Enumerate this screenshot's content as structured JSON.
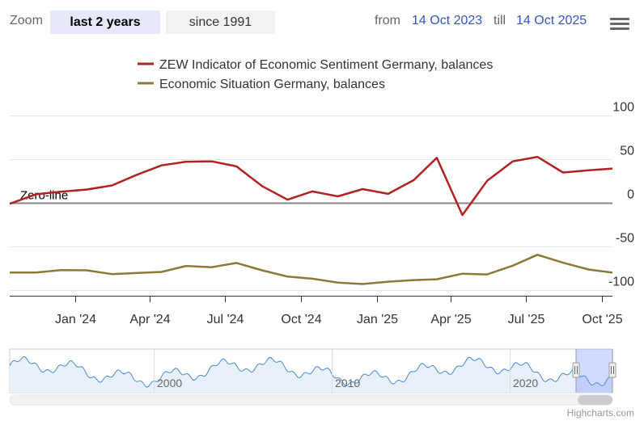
{
  "toolbar": {
    "zoom_label": "Zoom",
    "zoom_buttons": [
      "last 2 years",
      "since 1991"
    ],
    "active_zoom": "last 2 years",
    "from_label": "from",
    "from_value": "14 Oct 2023",
    "till_label": "till",
    "till_value": "14 Oct 2025",
    "menu_icon": "hamburger-menu-icon"
  },
  "credit": "Highcharts.com",
  "chart_data": {
    "type": "line",
    "ylim": [
      -100,
      100
    ],
    "yticks": [
      100,
      50,
      0,
      -50,
      -100
    ],
    "x_tick_labels": [
      "Jan '24",
      "Apr '24",
      "Jul '24",
      "Oct '24",
      "Jan '25",
      "Apr '25",
      "Jul '25",
      "Oct '25"
    ],
    "plot_lines": [
      {
        "value": 0,
        "label": "Zero-line"
      }
    ],
    "series": [
      {
        "name": "ZEW Indicator of Economic Sentiment Germany, balances",
        "color": "#b22222",
        "x": [
          "2023-10-14",
          "2023-11-15",
          "2023-12-15",
          "2024-01-15",
          "2024-02-15",
          "2024-03-15",
          "2024-04-15",
          "2024-05-15",
          "2024-06-15",
          "2024-07-15",
          "2024-08-15",
          "2024-09-15",
          "2024-10-15",
          "2024-11-15",
          "2024-12-15",
          "2025-01-15",
          "2025-02-15",
          "2025-03-15",
          "2025-04-15",
          "2025-05-15",
          "2025-06-15",
          "2025-07-15",
          "2025-08-15",
          "2025-09-15",
          "2025-10-14"
        ],
        "values": [
          -1.1,
          9.8,
          12.8,
          15.2,
          19.9,
          31.7,
          42.9,
          47.1,
          47.5,
          41.8,
          19.2,
          3.6,
          13.1,
          7.4,
          15.7,
          10.3,
          26.0,
          51.6,
          -14.0,
          25.2,
          47.5,
          52.7,
          34.7,
          37.3,
          39.3
        ]
      },
      {
        "name": "Economic Situation Germany, balances",
        "color": "#8b7a35",
        "x": [
          "2023-10-14",
          "2023-11-15",
          "2023-12-15",
          "2024-01-15",
          "2024-02-15",
          "2024-03-15",
          "2024-04-15",
          "2024-05-15",
          "2024-06-15",
          "2024-07-15",
          "2024-08-15",
          "2024-09-15",
          "2024-10-15",
          "2024-11-15",
          "2024-12-15",
          "2025-01-15",
          "2025-02-15",
          "2025-03-15",
          "2025-04-15",
          "2025-05-15",
          "2025-06-15",
          "2025-07-15",
          "2025-08-15",
          "2025-09-15",
          "2025-10-14"
        ],
        "values": [
          -79.9,
          -79.8,
          -77.1,
          -77.3,
          -81.7,
          -80.5,
          -79.2,
          -72.3,
          -73.8,
          -68.9,
          -77.3,
          -84.5,
          -86.9,
          -91.4,
          -93.1,
          -90.4,
          -88.5,
          -87.6,
          -81.2,
          -82.0,
          -72.0,
          -59.5,
          -68.6,
          -76.4,
          -80.0
        ]
      }
    ],
    "navigator": {
      "x_tick_labels": [
        "2000",
        "2010",
        "2020"
      ],
      "series_color": "#4a8ad4"
    }
  }
}
